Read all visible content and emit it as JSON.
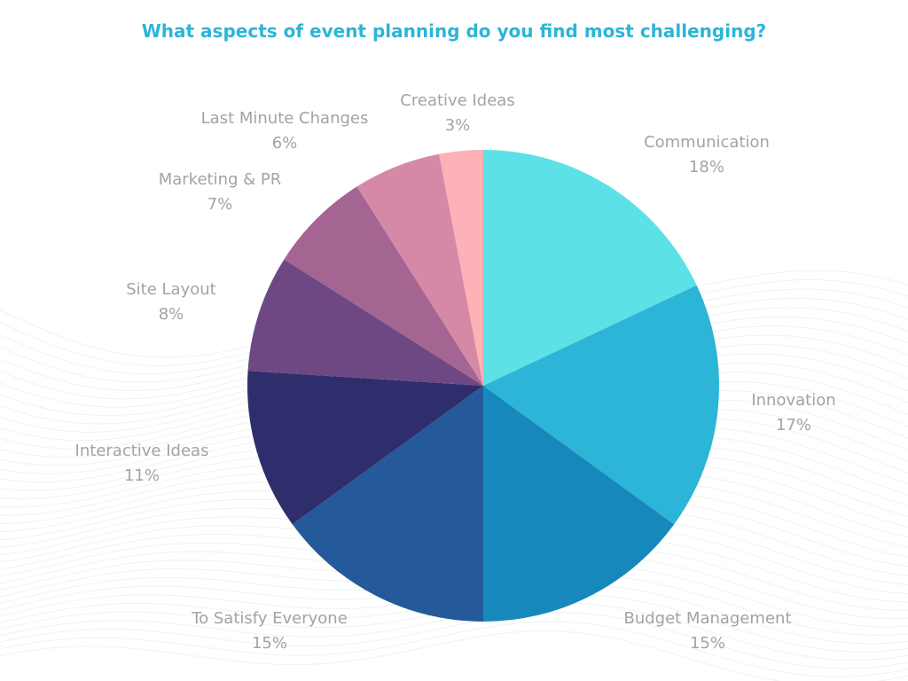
{
  "chart_data": {
    "type": "pie",
    "title": "What aspects of event planning do you find most challenging?",
    "start": "top, clockwise",
    "slices": [
      {
        "label": "Communication",
        "value": 18,
        "display": "18%",
        "color": "#5ce1e6"
      },
      {
        "label": "Innovation",
        "value": 17,
        "display": "17%",
        "color": "#2cb5d6"
      },
      {
        "label": "Budget Management",
        "value": 15,
        "display": "15%",
        "color": "#1788bb"
      },
      {
        "label": "To Satisfy Everyone",
        "value": 15,
        "display": "15%",
        "color": "#255a9a"
      },
      {
        "label": "Interactive Ideas",
        "value": 11,
        "display": "11%",
        "color": "#2e2e6c"
      },
      {
        "label": "Site Layout",
        "value": 8,
        "display": "8%",
        "color": "#6e4882"
      },
      {
        "label": "Marketing & PR",
        "value": 7,
        "display": "7%",
        "color": "#a46593"
      },
      {
        "label": "Last Minute Changes",
        "value": 6,
        "display": "6%",
        "color": "#d589a6"
      },
      {
        "label": "Creative Ideas",
        "value": 3,
        "display": "3%",
        "color": "#feb1b6"
      }
    ]
  }
}
